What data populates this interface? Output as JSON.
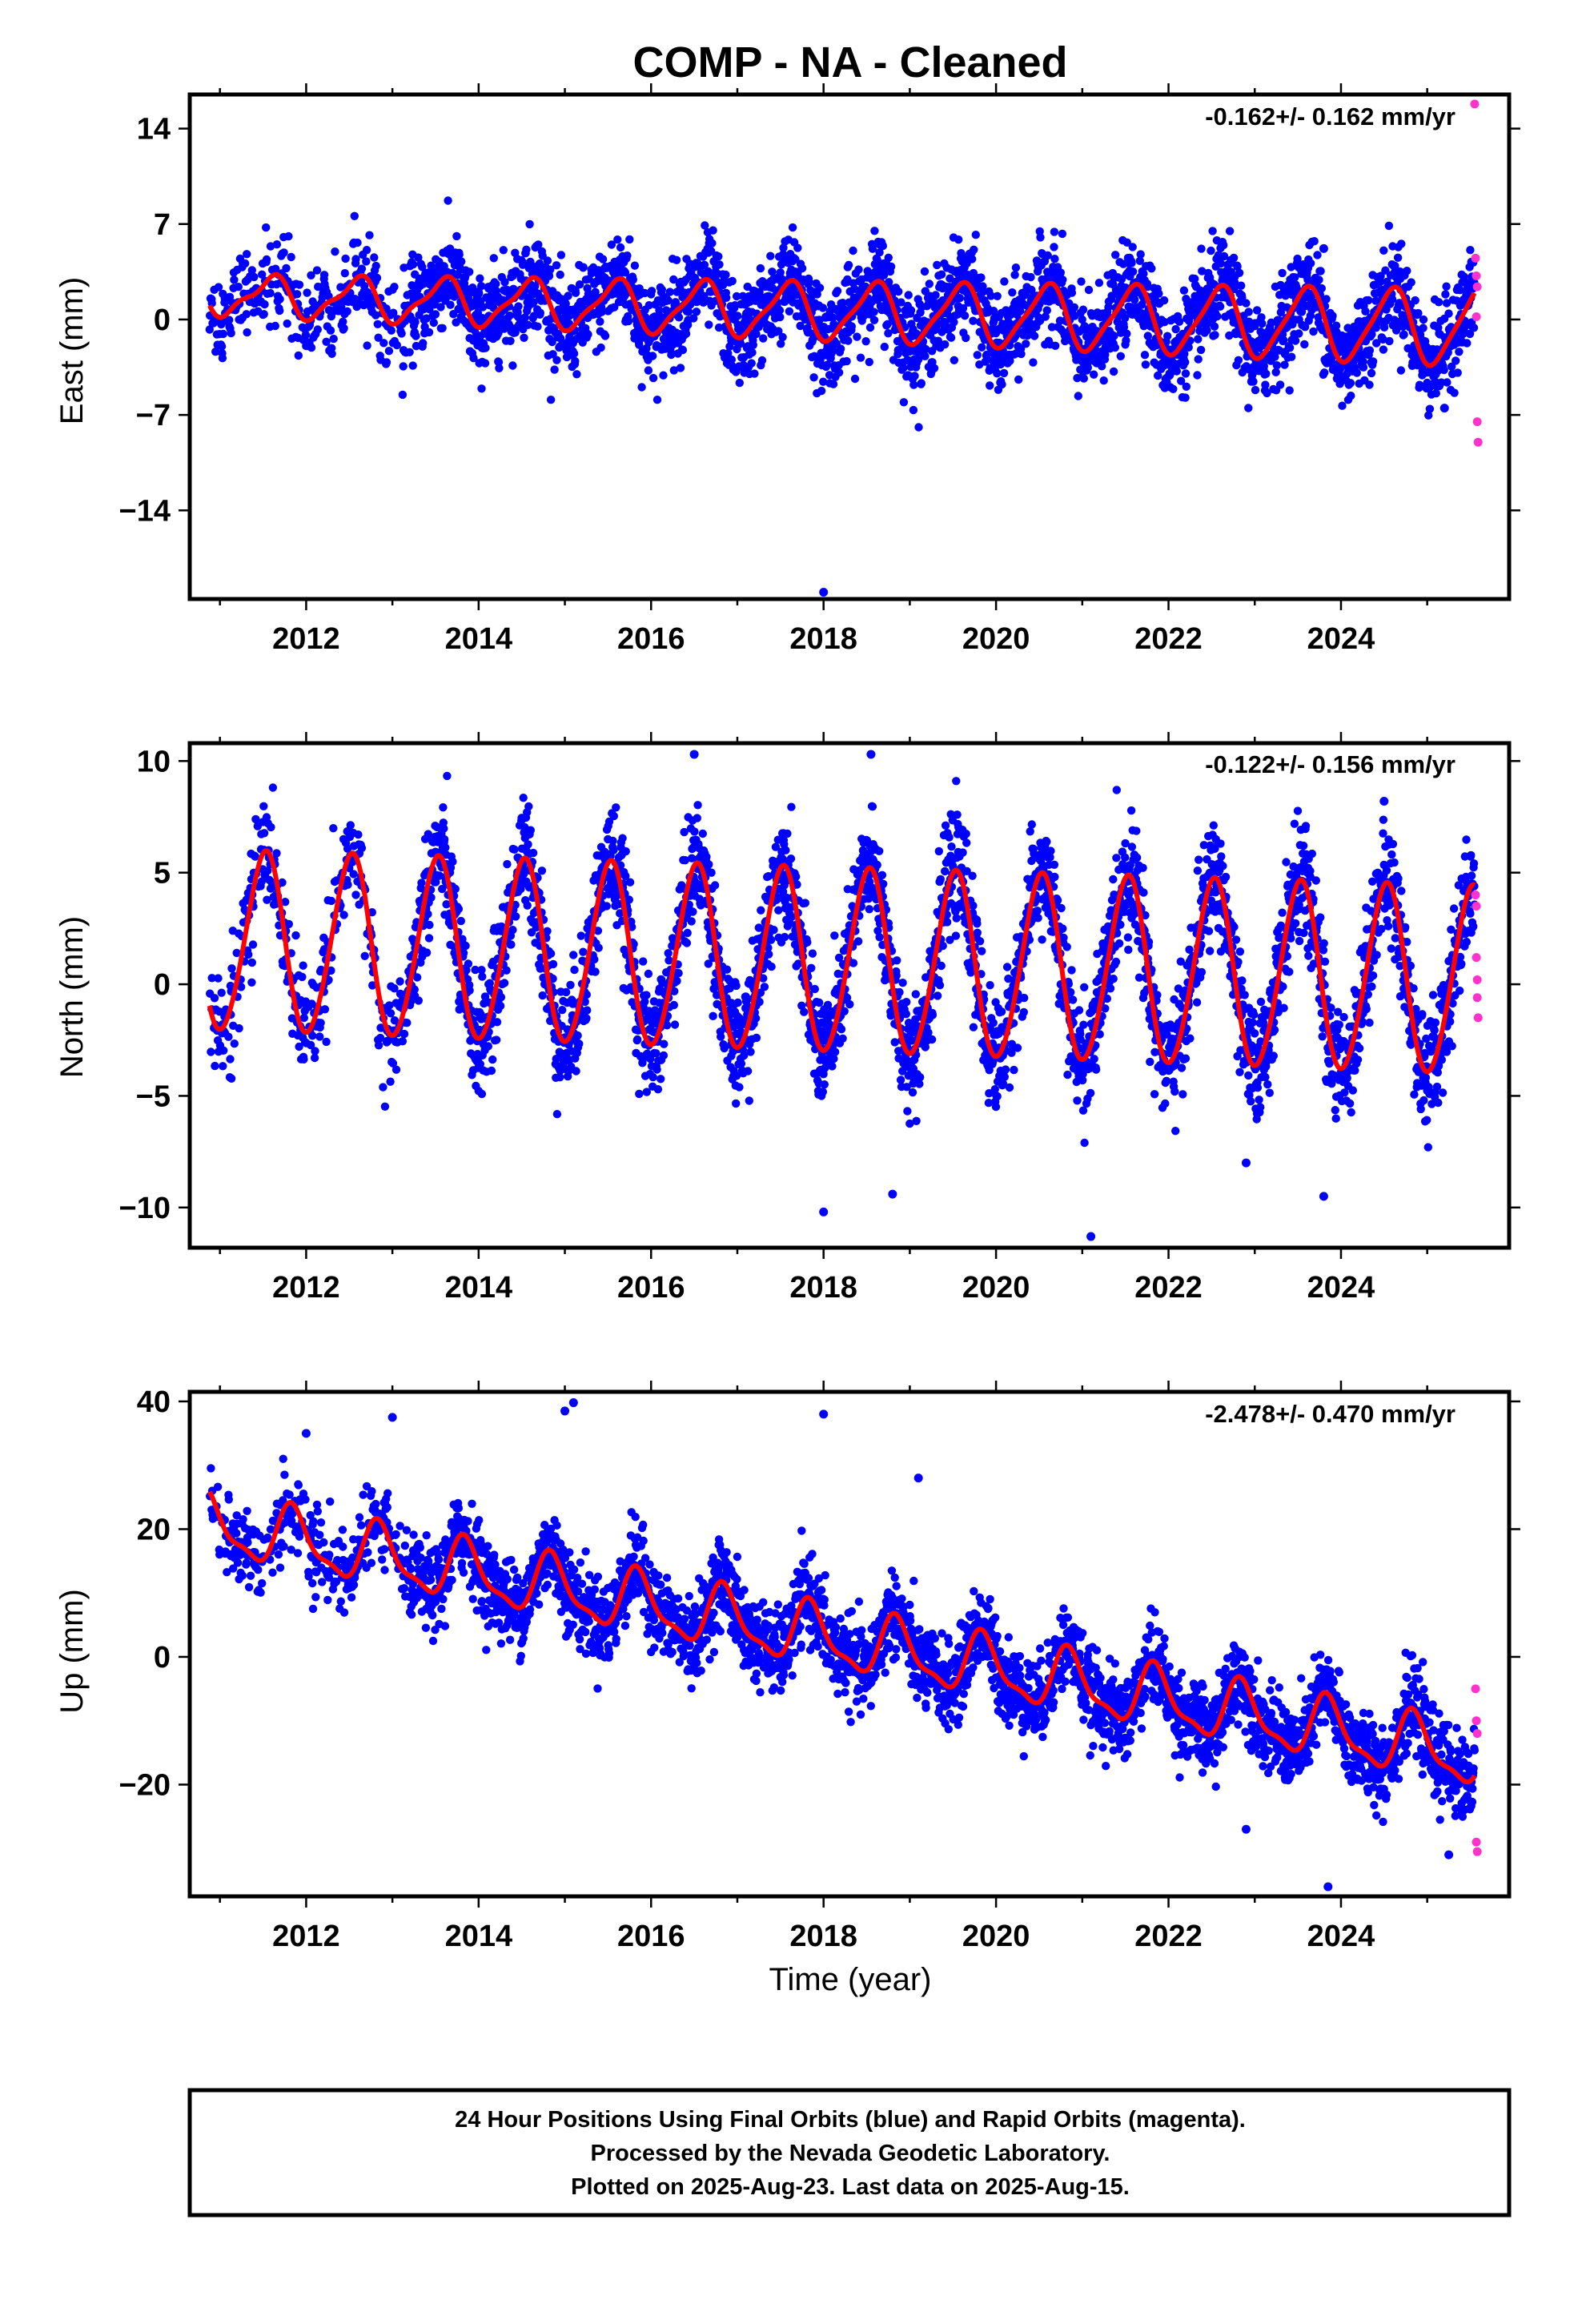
{
  "figure": {
    "title": "COMP  - NA - Cleaned",
    "xlabel": "Time (year)",
    "footer_lines": [
      "24 Hour Positions Using Final Orbits (blue) and Rapid Orbits (magenta).",
      "Processed by the Nevada Geodetic Laboratory.",
      "Plotted on 2025-Aug-23. Last data on 2025-Aug-15."
    ]
  },
  "colors": {
    "final_orbits": "#0000ff",
    "rapid_orbits": "#ff33cc",
    "model_fit": "#ff0000",
    "frame": "#000000"
  },
  "chart_data": [
    {
      "type": "scatter",
      "name": "east",
      "ylabel": "East (mm)",
      "rate_label": "-0.162+/- 0.162 mm/yr",
      "xlim": [
        2010.65,
        2025.95
      ],
      "ylim": [
        -20.5,
        16.5
      ],
      "xticks": [
        2012,
        2014,
        2016,
        2018,
        2020,
        2022,
        2024
      ],
      "yticks": [
        14,
        7,
        0,
        -7,
        -14
      ],
      "fit": {
        "trend": -0.162,
        "ref_year": 2018,
        "offset": 0.6,
        "annual_start": 1.3,
        "annual_end": 2.8,
        "phase_peak_fraction": 0.58,
        "semiannual": 0.5,
        "semiannual_peak_fraction": 0.2
      },
      "scatter_sd": 1.7,
      "outliers": [
        [
          2018.0,
          -20.0
        ],
        [
          2023.8,
          5.2
        ],
        [
          2025.2,
          -6.5
        ]
      ],
      "rapid_points": [
        [
          2025.55,
          15.8
        ],
        [
          2025.56,
          4.5
        ],
        [
          2025.57,
          3.2
        ],
        [
          2025.58,
          2.4
        ],
        [
          2025.57,
          0.2
        ],
        [
          2025.58,
          -7.5
        ],
        [
          2025.59,
          -9.0
        ]
      ]
    },
    {
      "type": "scatter",
      "name": "north",
      "ylabel": "North (mm)",
      "rate_label": "-0.122+/- 0.156 mm/yr",
      "xlim": [
        2010.65,
        2025.95
      ],
      "ylim": [
        -11.8,
        10.8
      ],
      "xticks": [
        2012,
        2014,
        2016,
        2018,
        2020,
        2022,
        2024
      ],
      "yticks": [
        10,
        5,
        0,
        -5,
        -10
      ],
      "fit": {
        "trend": -0.122,
        "ref_year": 2018,
        "offset": 1.0,
        "annual_start": 4.0,
        "annual_end": 4.2,
        "phase_peak_fraction": 0.52,
        "semiannual": 0.3,
        "semiannual_peak_fraction": 0.1
      },
      "scatter_sd": 1.25,
      "outliers": [
        [
          2018.0,
          -10.2
        ],
        [
          2018.8,
          -9.4
        ],
        [
          2021.1,
          -11.3
        ],
        [
          2023.8,
          -9.5
        ],
        [
          2016.5,
          10.3
        ],
        [
          2018.55,
          10.3
        ],
        [
          2024.5,
          8.2
        ],
        [
          2022.9,
          -8.0
        ]
      ],
      "rapid_points": [
        [
          2025.56,
          4.0
        ],
        [
          2025.57,
          3.5
        ],
        [
          2025.57,
          1.2
        ],
        [
          2025.58,
          0.2
        ],
        [
          2025.58,
          -0.6
        ],
        [
          2025.59,
          -1.5
        ]
      ]
    },
    {
      "type": "scatter",
      "name": "up",
      "ylabel": "Up (mm)",
      "rate_label": "-2.478+/- 0.470 mm/yr",
      "xlim": [
        2010.65,
        2025.95
      ],
      "ylim": [
        -37.5,
        41.5
      ],
      "xticks": [
        2012,
        2014,
        2016,
        2018,
        2020,
        2022,
        2024
      ],
      "yticks": [
        40,
        20,
        0,
        -20
      ],
      "fit": {
        "trend": -2.478,
        "ref_year": 2018,
        "offset": 3.0,
        "annual_start": 4.5,
        "annual_end": 4.5,
        "phase_peak_fraction": 0.85,
        "semiannual": 1.5,
        "semiannual_peak_fraction": 0.3
      },
      "scatter_sd": 3.2,
      "outliers": [
        [
          2012.0,
          35.0
        ],
        [
          2013.0,
          37.5
        ],
        [
          2015.0,
          38.5
        ],
        [
          2015.1,
          39.8
        ],
        [
          2018.0,
          38.0
        ],
        [
          2019.1,
          28.0
        ],
        [
          2023.85,
          -36.0
        ],
        [
          2025.25,
          -31.0
        ],
        [
          2022.9,
          -27.0
        ]
      ],
      "rapid_points": [
        [
          2025.56,
          -5.0
        ],
        [
          2025.57,
          -10.0
        ],
        [
          2025.58,
          -12.0
        ],
        [
          2025.57,
          -29.0
        ],
        [
          2025.58,
          -30.5
        ]
      ]
    }
  ]
}
